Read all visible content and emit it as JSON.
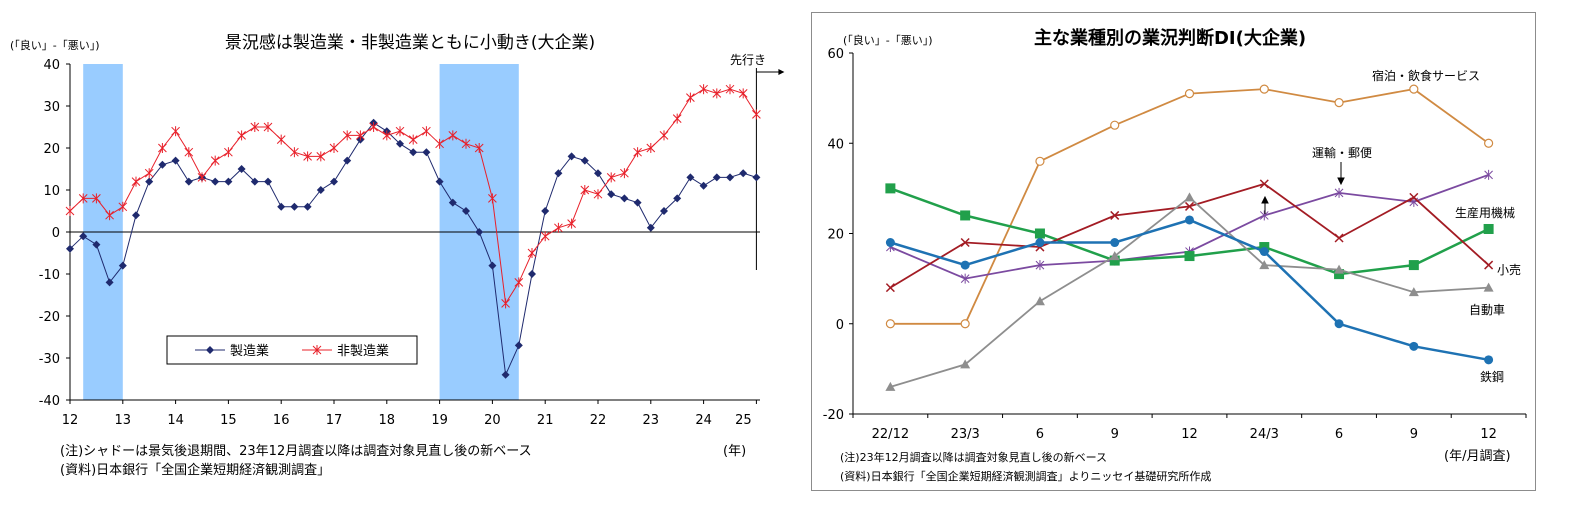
{
  "chart_data": [
    {
      "type": "line",
      "title": "景況感は製造業・非製造業ともに小動き(大企業)",
      "ylabel": "(「良い」-「悪い」)",
      "xlabel": "(年)",
      "x_tick_labels": [
        "12",
        "13",
        "14",
        "15",
        "16",
        "17",
        "18",
        "19",
        "20",
        "21",
        "22",
        "23",
        "24",
        "25"
      ],
      "y_ticks": [
        40,
        30,
        20,
        10,
        0,
        -10,
        -20,
        -30,
        -40
      ],
      "ylim": [
        -40,
        40
      ],
      "xlim": [
        2012,
        2025.25
      ],
      "forecast_label": "先行き",
      "forecast_x": 2025.0,
      "shading": [
        [
          2012.25,
          2013.0
        ],
        [
          2019.0,
          2020.5
        ]
      ],
      "legend_position": "lower-middle",
      "note": "(注)シャドーは景気後退期間、23年12月調査以降は調査対象見直し後の新ベース",
      "source": "(資料)日本銀行「全国企業短期経済観測調査」",
      "series": [
        {
          "name": "製造業",
          "color": "#1f2a6e",
          "marker": "diamond",
          "x": [
            2012.0,
            2012.25,
            2012.5,
            2012.75,
            2013.0,
            2013.25,
            2013.5,
            2013.75,
            2014.0,
            2014.25,
            2014.5,
            2014.75,
            2015.0,
            2015.25,
            2015.5,
            2015.75,
            2016.0,
            2016.25,
            2016.5,
            2016.75,
            2017.0,
            2017.25,
            2017.5,
            2017.75,
            2018.0,
            2018.25,
            2018.5,
            2018.75,
            2019.0,
            2019.25,
            2019.5,
            2019.75,
            2020.0,
            2020.25,
            2020.5,
            2020.75,
            2021.0,
            2021.25,
            2021.5,
            2021.75,
            2022.0,
            2022.25,
            2022.5,
            2022.75,
            2023.0,
            2023.25,
            2023.5,
            2023.75,
            2024.0,
            2024.25,
            2024.5,
            2024.75,
            2025.0
          ],
          "y": [
            -4,
            -1,
            -3,
            -12,
            -8,
            4,
            12,
            16,
            17,
            12,
            13,
            12,
            12,
            15,
            12,
            12,
            6,
            6,
            6,
            10,
            12,
            17,
            22,
            26,
            24,
            21,
            19,
            19,
            12,
            7,
            5,
            0,
            -8,
            -34,
            -27,
            -10,
            5,
            14,
            18,
            17,
            14,
            9,
            8,
            7,
            1,
            5,
            8,
            13,
            11,
            13,
            13,
            14,
            13
          ]
        },
        {
          "name": "非製造業",
          "color": "#e8202a",
          "marker": "asterisk",
          "x": [
            2012.0,
            2012.25,
            2012.5,
            2012.75,
            2013.0,
            2013.25,
            2013.5,
            2013.75,
            2014.0,
            2014.25,
            2014.5,
            2014.75,
            2015.0,
            2015.25,
            2015.5,
            2015.75,
            2016.0,
            2016.25,
            2016.5,
            2016.75,
            2017.0,
            2017.25,
            2017.5,
            2017.75,
            2018.0,
            2018.25,
            2018.5,
            2018.75,
            2019.0,
            2019.25,
            2019.5,
            2019.75,
            2020.0,
            2020.25,
            2020.5,
            2020.75,
            2021.0,
            2021.25,
            2021.5,
            2021.75,
            2022.0,
            2022.25,
            2022.5,
            2022.75,
            2023.0,
            2023.25,
            2023.5,
            2023.75,
            2024.0,
            2024.25,
            2024.5,
            2024.75,
            2025.0
          ],
          "y": [
            5,
            8,
            8,
            4,
            6,
            12,
            14,
            20,
            24,
            19,
            13,
            17,
            19,
            23,
            25,
            25,
            22,
            19,
            18,
            18,
            20,
            23,
            23,
            25,
            23,
            24,
            22,
            24,
            21,
            23,
            21,
            20,
            8,
            -17,
            -12,
            -5,
            -1,
            1,
            2,
            10,
            9,
            13,
            14,
            19,
            20,
            23,
            27,
            32,
            34,
            33,
            34,
            33,
            28
          ]
        }
      ]
    },
    {
      "type": "line",
      "title": "主な業種別の業況判断DI(大企業)",
      "ylabel": "(「良い」-「悪い」)",
      "xlabel": "(年/月調査)",
      "categories": [
        "22/12",
        "23/3",
        "6",
        "9",
        "12",
        "24/3",
        "6",
        "9",
        "12"
      ],
      "y_ticks": [
        60,
        40,
        20,
        0,
        -20
      ],
      "ylim": [
        -20,
        60
      ],
      "note": "(注)23年12月調査以降は調査対象見直し後の新ベース",
      "source": "(資料)日本銀行「全国企業短期経済観測調査」よりニッセイ基礎研究所作成",
      "series": [
        {
          "name": "宿泊・飲食サービス",
          "color": "#d08a42",
          "marker": "circle-open",
          "values": [
            0,
            0,
            36,
            44,
            51,
            52,
            49,
            52,
            40
          ]
        },
        {
          "name": "運輸・郵便",
          "color": "#7b4aa0",
          "marker": "asterisk",
          "values": [
            17,
            10,
            13,
            14,
            16,
            24,
            29,
            27,
            33
          ]
        },
        {
          "name": "生産用機械",
          "color": "#21a04b",
          "marker": "square",
          "values": [
            30,
            24,
            20,
            14,
            15,
            17,
            11,
            13,
            21
          ]
        },
        {
          "name": "小売",
          "color": "#a31c24",
          "marker": "x",
          "values": [
            8,
            18,
            17,
            24,
            26,
            31,
            19,
            28,
            13
          ]
        },
        {
          "name": "自動車",
          "color": "#8e8e8e",
          "marker": "triangle",
          "values": [
            -14,
            -9,
            5,
            15,
            28,
            13,
            12,
            7,
            8
          ]
        },
        {
          "name": "鉄鋼",
          "color": "#1e72b3",
          "marker": "circle",
          "values": [
            18,
            13,
            18,
            18,
            23,
            16,
            0,
            -5,
            -8
          ]
        }
      ]
    }
  ]
}
